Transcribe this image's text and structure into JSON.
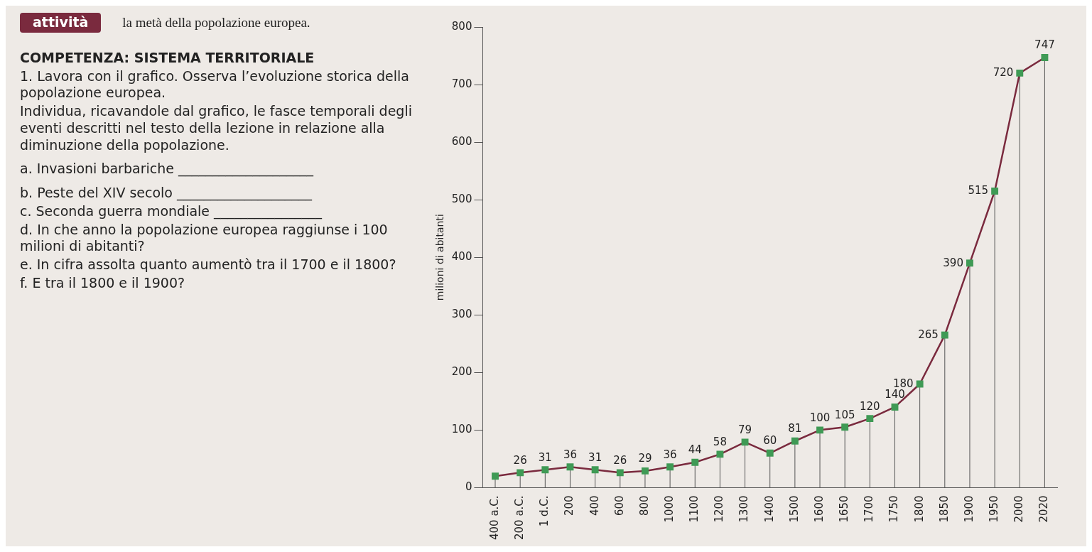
{
  "chart_data": {
    "type": "line",
    "ylabel": "milioni di abitanti",
    "categories": [
      "400 a.C.",
      "200 a.C.",
      "1 d.C.",
      "200",
      "400",
      "600",
      "800",
      "1000",
      "1100",
      "1200",
      "1300",
      "1400",
      "1500",
      "1600",
      "1650",
      "1700",
      "1750",
      "1800",
      "1850",
      "1900",
      "1950",
      "2000",
      "2020"
    ],
    "series": [
      {
        "color": "#7a2a3e",
        "values": [
          20,
          26,
          31,
          36,
          31,
          26,
          29,
          36,
          44,
          58,
          79,
          60,
          81,
          100,
          105,
          120,
          140,
          180,
          265,
          390,
          515,
          720,
          747
        ],
        "colors": [
          "#3f9a55",
          "#3f9a55",
          "#3f9a55",
          "#3f9a55",
          "#3f9a55",
          "#3f9a55",
          "#3f9a55",
          "#3f9a55",
          "#3f9a55",
          "#3f9a55",
          "#3f9a55",
          "#3f9a55",
          "#3f9a55",
          "#3f9a55",
          "#3f9a55",
          "#3f9a55",
          "#3f9a55",
          "#3f9a55",
          "#3f9a55",
          "#3f9a55",
          "#3f9a55",
          "#3f9a55",
          "#3f9a55"
        ],
        "value_labels": [
          null,
          "26",
          "31",
          "36",
          "31",
          "26",
          "29",
          "36",
          "44",
          "58",
          "79",
          "60",
          "81",
          "100",
          "105",
          "120",
          "140",
          "180",
          "265",
          "390",
          "515",
          "720",
          "747"
        ]
      }
    ],
    "ylim": [
      0,
      800
    ],
    "yticks": [
      0,
      100,
      200,
      300,
      400,
      500,
      600,
      700,
      800
    ],
    "grid": "x",
    "marker": "square",
    "legend": false,
    "annotations": [
      "attività",
      "la metà della popolazione europea.",
      "COMPETENZA: SISTEMA TERRITORIALE",
      "1. Lavora con il grafico. Osserva l’evoluzione storica della popolazione europea.",
      "Individua, ricavandole dal grafico, le fasce temporali degli eventi descritti nel testo della lezione in relazione alla diminuzione della popolazione.",
      "a. Invasioni barbariche ____________________",
      "b. Peste del XIV secolo ____________________",
      "c. Seconda guerra mondiale ________________",
      "d. In che anno la popolazione europea raggiunse i 100 milioni di abitanti?",
      "e. In cifra assolta quanto aumentò tra il 1700 e il 1800?",
      "f. E tra il 1800 e il 1900?"
    ]
  }
}
